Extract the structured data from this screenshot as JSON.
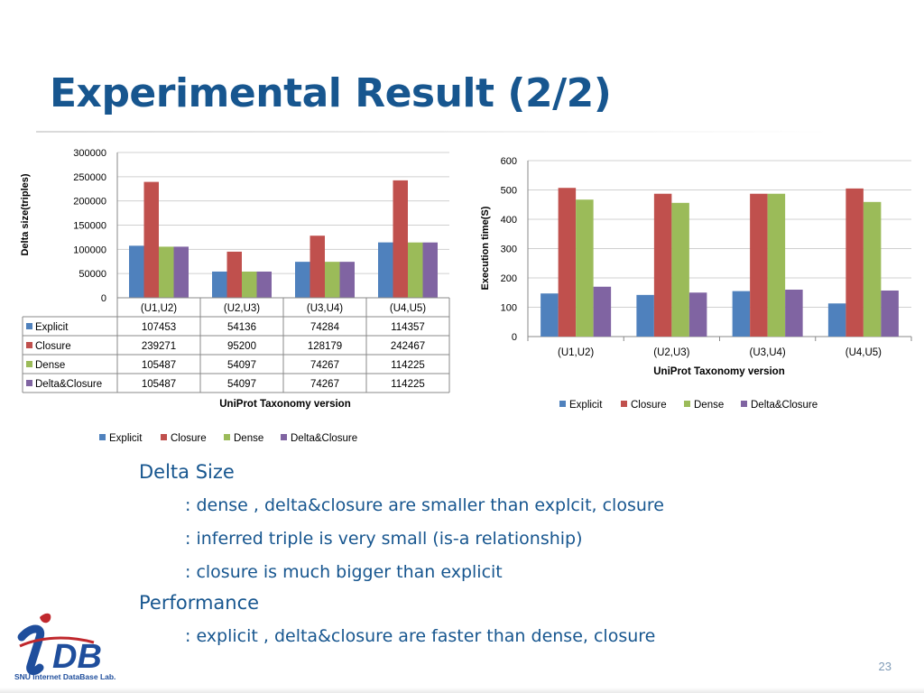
{
  "slide": {
    "title": "Experimental Result (2/2)",
    "page_number": "23",
    "logo_text": "SNU Internet DataBase Lab."
  },
  "colors": {
    "explicit": "#4f81bd",
    "closure": "#c0504d",
    "dense": "#9bbb59",
    "delta_closure": "#8064a2",
    "title": "#17568f"
  },
  "chart_data": [
    {
      "type": "bar",
      "ylabel": "Delta size(triples)",
      "xlabel": "UniProt Taxonomy version",
      "categories": [
        "(U1,U2)",
        "(U2,U3)",
        "(U3,U4)",
        "(U4,U5)"
      ],
      "ylim": [
        0,
        300000
      ],
      "yticks": [
        0,
        50000,
        100000,
        150000,
        200000,
        250000,
        300000
      ],
      "grid": true,
      "legend": "bottom",
      "data_table": true,
      "series": [
        {
          "name": "Explicit",
          "values": [
            107453,
            54136,
            74284,
            114357
          ]
        },
        {
          "name": "Closure",
          "values": [
            239271,
            95200,
            128179,
            242467
          ]
        },
        {
          "name": "Dense",
          "values": [
            105487,
            54097,
            74267,
            114225
          ]
        },
        {
          "name": "Delta&Closure",
          "values": [
            105487,
            54097,
            74267,
            114225
          ]
        }
      ]
    },
    {
      "type": "bar",
      "ylabel": "Execution time(S)",
      "xlabel": "UniProt Taxonomy version",
      "categories": [
        "(U1,U2)",
        "(U2,U3)",
        "(U3,U4)",
        "(U4,U5)"
      ],
      "ylim": [
        0,
        600
      ],
      "yticks": [
        0,
        100,
        200,
        300,
        400,
        500,
        600
      ],
      "grid": true,
      "legend": "bottom",
      "series": [
        {
          "name": "Explicit",
          "values": [
            147,
            142,
            155,
            113
          ]
        },
        {
          "name": "Closure",
          "values": [
            507,
            487,
            487,
            505
          ]
        },
        {
          "name": "Dense",
          "values": [
            467,
            456,
            487,
            459
          ]
        },
        {
          "name": "Delta&Closure",
          "values": [
            170,
            150,
            160,
            157
          ]
        }
      ]
    }
  ],
  "bullets": {
    "delta_size": {
      "heading": "Delta Size",
      "items": [
        ": dense , delta&closure are smaller than explcit, closure",
        ": inferred triple is very small (is-a relationship)",
        ": closure is much bigger than explicit"
      ]
    },
    "performance": {
      "heading": "Performance",
      "items": [
        ": explicit , delta&closure are faster than dense, closure"
      ]
    }
  }
}
